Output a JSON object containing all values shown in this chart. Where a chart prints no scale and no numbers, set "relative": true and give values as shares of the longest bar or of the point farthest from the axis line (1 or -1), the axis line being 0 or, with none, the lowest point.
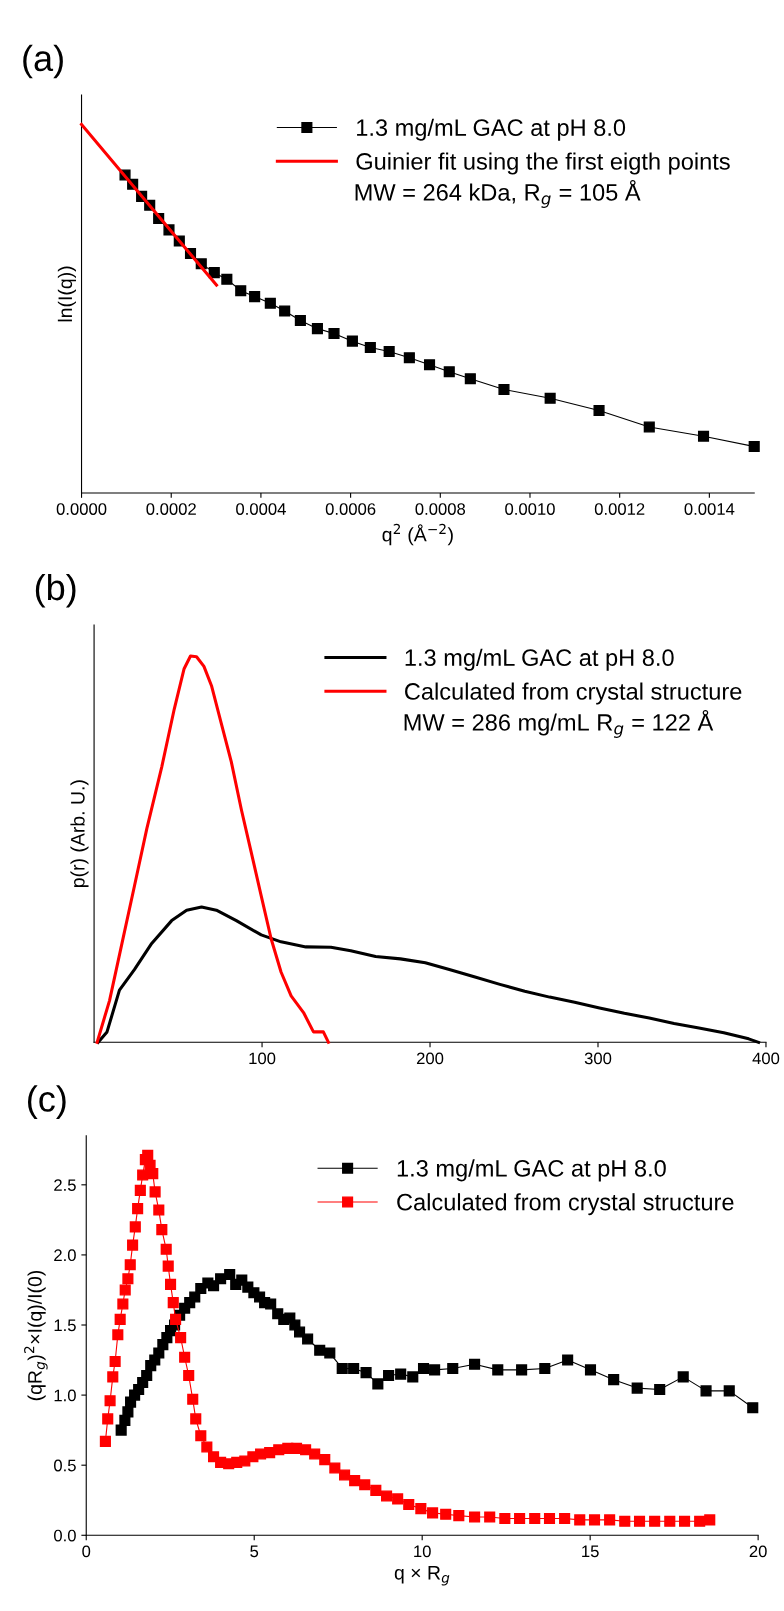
{
  "chart_data": [
    {
      "type": "line",
      "title": "(a)",
      "xlabel": "q$^{2}$ (Å$^{−2}$)",
      "ylabel": "ln(I(q))",
      "relative": true,
      "xlim": [
        0,
        0.0015
      ],
      "xticks": [
        {
          "value": 0,
          "label": "0.0000"
        },
        {
          "value": 0.0002,
          "label": "0.0002"
        },
        {
          "value": 0.0004,
          "label": "0.0004"
        },
        {
          "value": 0.0006,
          "label": "0.0006"
        },
        {
          "value": 0.0008,
          "label": "0.0008"
        },
        {
          "value": 0.001,
          "label": "0.0010"
        },
        {
          "value": 0.0012,
          "label": "0.0012"
        },
        {
          "value": 0.0014,
          "label": "0.0014"
        }
      ],
      "tick_labels": "x",
      "legend": "top right",
      "grid": false,
      "annotations": [
        "MW = 264 kDa, R$_{g}$ = 105 Å"
      ],
      "series": [
        {
          "name": "1.3 mg/mL GAC at pH 8.0",
          "color": "#000000",
          "marker": "square",
          "x": [
            9.7e-05,
            0.000114,
            0.000134,
            0.000152,
            0.000172,
            0.000195,
            0.000218,
            0.000243,
            0.000267,
            0.000296,
            0.000324,
            0.000355,
            0.000386,
            0.000421,
            0.000453,
            0.000488,
            0.000526,
            0.000563,
            0.000604,
            0.000644,
            0.000686,
            0.000731,
            0.000776,
            0.00082,
            0.000867,
            0.000942,
            0.001045,
            0.001154,
            0.001266,
            0.001387,
            0.0015
          ],
          "values": [
            0.863,
            0.838,
            0.805,
            0.781,
            0.745,
            0.714,
            0.684,
            0.65,
            0.622,
            0.598,
            0.58,
            0.549,
            0.533,
            0.515,
            0.494,
            0.468,
            0.446,
            0.433,
            0.412,
            0.395,
            0.384,
            0.367,
            0.348,
            0.329,
            0.31,
            0.281,
            0.257,
            0.224,
            0.179,
            0.154,
            0.126
          ]
        },
        {
          "name": "Guinier fit using the first eigth points",
          "color": "#ff0000",
          "x": [
            0,
            0.000301
          ],
          "values": [
            1.0,
            0.564
          ]
        }
      ]
    },
    {
      "type": "line",
      "title": "(b)",
      "ylabel": "p(r) (Arb. U.)",
      "relative": true,
      "xlim": [
        0,
        400
      ],
      "xticks": [
        100,
        200,
        300,
        400
      ],
      "tick_labels": "x",
      "legend": "top right",
      "grid": false,
      "annotations": [
        "MW = 286 mg/mL R$_{g}$ = 122 Å"
      ],
      "series": [
        {
          "name": "1.3 mg/mL GAC at pH 8.0",
          "color": "#000000",
          "x": [
            2.4,
            7.7,
            15.1,
            24.0,
            34.3,
            46.2,
            55.1,
            64.0,
            72.8,
            84.7,
            99.5,
            111.3,
            126.1,
            141.0,
            152.8,
            167.6,
            182.4,
            197.2,
            212.0,
            226.8,
            241.6,
            256.4,
            271.2,
            286.1,
            300.9,
            315.7,
            330.5,
            345.3,
            360.1,
            374.9,
            389.7,
            395.6
          ],
          "values": [
            0,
            0.027,
            0.135,
            0.188,
            0.256,
            0.315,
            0.342,
            0.35,
            0.342,
            0.315,
            0.278,
            0.26,
            0.247,
            0.246,
            0.237,
            0.222,
            0.216,
            0.206,
            0.188,
            0.169,
            0.15,
            0.132,
            0.117,
            0.104,
            0.089,
            0.075,
            0.063,
            0.049,
            0.037,
            0.025,
            0.009,
            0
          ]
        },
        {
          "name": "Calculated from crystal structure",
          "color": "#ff0000",
          "x": [
            1.8,
            9.2,
            16.6,
            24.0,
            31.4,
            40.3,
            47.7,
            53.6,
            57.4,
            61.0,
            65.4,
            69.9,
            75.8,
            81.7,
            87.7,
            93.6,
            99.5,
            105.4,
            111.3,
            117.3,
            124.7,
            130.6,
            136.5,
            139.5
          ],
          "values": [
            0,
            0.108,
            0.256,
            0.404,
            0.553,
            0.713,
            0.862,
            0.967,
            1.0,
            0.998,
            0.973,
            0.923,
            0.824,
            0.726,
            0.602,
            0.491,
            0.379,
            0.268,
            0.182,
            0.12,
            0.077,
            0.027,
            0.027,
            0
          ]
        }
      ]
    },
    {
      "type": "line",
      "title": "(c)",
      "xlabel": "q × R$_{g}$",
      "ylabel": "(qR$_{g}$)$^{2}$×I(q)/I(0)",
      "xlim": [
        0,
        20
      ],
      "xticks": [
        0,
        5,
        10,
        15,
        20
      ],
      "ylim": [
        0,
        2.85
      ],
      "yticks": [
        {
          "value": 0,
          "label": "0.0"
        },
        {
          "value": 0.5,
          "label": "0.5"
        },
        {
          "value": 1,
          "label": "1.0"
        },
        {
          "value": 1.5,
          "label": "1.5"
        },
        {
          "value": 2,
          "label": "2.0"
        },
        {
          "value": 2.5,
          "label": "2.5"
        }
      ],
      "legend": "top right",
      "grid": false,
      "series": [
        {
          "name": "1.3 mg/mL GAC at pH 8.0",
          "color": "#000000",
          "marker": "square",
          "x": [
            1.04,
            1.15,
            1.24,
            1.32,
            1.44,
            1.56,
            1.68,
            1.8,
            1.92,
            2.04,
            2.16,
            2.28,
            2.4,
            2.51,
            2.63,
            2.78,
            2.93,
            3.08,
            3.23,
            3.41,
            3.62,
            3.79,
            4.0,
            4.27,
            4.45,
            4.63,
            4.81,
            4.99,
            5.16,
            5.31,
            5.49,
            5.7,
            5.88,
            6.06,
            6.21,
            6.35,
            6.59,
            6.95,
            7.25,
            7.62,
            7.96,
            8.33,
            8.68,
            9.0,
            9.36,
            9.72,
            10.04,
            10.37,
            10.91,
            11.56,
            12.25,
            12.96,
            13.65,
            14.33,
            15.01,
            15.7,
            16.4,
            17.07,
            17.77,
            18.45,
            19.14,
            19.84
          ],
          "values": [
            0.75,
            0.82,
            0.88,
            0.95,
            1.0,
            1.04,
            1.09,
            1.14,
            1.21,
            1.25,
            1.3,
            1.36,
            1.41,
            1.46,
            1.5,
            1.57,
            1.62,
            1.66,
            1.7,
            1.76,
            1.8,
            1.78,
            1.83,
            1.86,
            1.79,
            1.82,
            1.77,
            1.73,
            1.7,
            1.66,
            1.65,
            1.58,
            1.54,
            1.55,
            1.5,
            1.45,
            1.4,
            1.32,
            1.3,
            1.19,
            1.19,
            1.16,
            1.08,
            1.14,
            1.15,
            1.13,
            1.19,
            1.18,
            1.19,
            1.22,
            1.18,
            1.18,
            1.19,
            1.25,
            1.18,
            1.11,
            1.05,
            1.04,
            1.13,
            1.03,
            1.03,
            0.91
          ]
        },
        {
          "name": "Calculated from crystal structure",
          "color": "#ff0000",
          "marker": "square",
          "x": [
            0.57,
            0.64,
            0.71,
            0.79,
            0.86,
            0.94,
            1.01,
            1.09,
            1.16,
            1.24,
            1.31,
            1.38,
            1.46,
            1.53,
            1.61,
            1.68,
            1.76,
            1.83,
            1.9,
            1.98,
            2.05,
            2.16,
            2.25,
            2.38,
            2.44,
            2.51,
            2.59,
            2.66,
            2.81,
            2.93,
            3.05,
            3.17,
            3.26,
            3.41,
            3.59,
            3.79,
            4.0,
            4.24,
            4.48,
            4.72,
            4.96,
            5.19,
            5.46,
            5.73,
            6.0,
            6.26,
            6.53,
            6.8,
            7.1,
            7.4,
            7.69,
            7.99,
            8.29,
            8.62,
            8.94,
            9.27,
            9.6,
            9.96,
            10.31,
            10.7,
            11.09,
            11.56,
            12.01,
            12.46,
            12.9,
            13.35,
            13.79,
            14.24,
            14.69,
            15.13,
            15.58,
            16.03,
            16.47,
            16.92,
            17.37,
            17.81,
            18.26,
            18.56
          ],
          "values": [
            0.67,
            0.83,
            0.96,
            1.13,
            1.24,
            1.43,
            1.54,
            1.65,
            1.75,
            1.83,
            1.93,
            2.07,
            2.2,
            2.33,
            2.46,
            2.57,
            2.68,
            2.71,
            2.64,
            2.58,
            2.45,
            2.32,
            2.18,
            2.04,
            1.92,
            1.79,
            1.66,
            1.54,
            1.41,
            1.27,
            1.14,
            0.97,
            0.83,
            0.71,
            0.63,
            0.56,
            0.52,
            0.51,
            0.52,
            0.53,
            0.56,
            0.58,
            0.59,
            0.61,
            0.62,
            0.62,
            0.61,
            0.58,
            0.54,
            0.48,
            0.43,
            0.39,
            0.36,
            0.32,
            0.28,
            0.26,
            0.22,
            0.19,
            0.16,
            0.15,
            0.14,
            0.13,
            0.13,
            0.12,
            0.12,
            0.12,
            0.12,
            0.12,
            0.11,
            0.11,
            0.11,
            0.1,
            0.1,
            0.1,
            0.1,
            0.1,
            0.1,
            0.11
          ]
        }
      ]
    }
  ]
}
